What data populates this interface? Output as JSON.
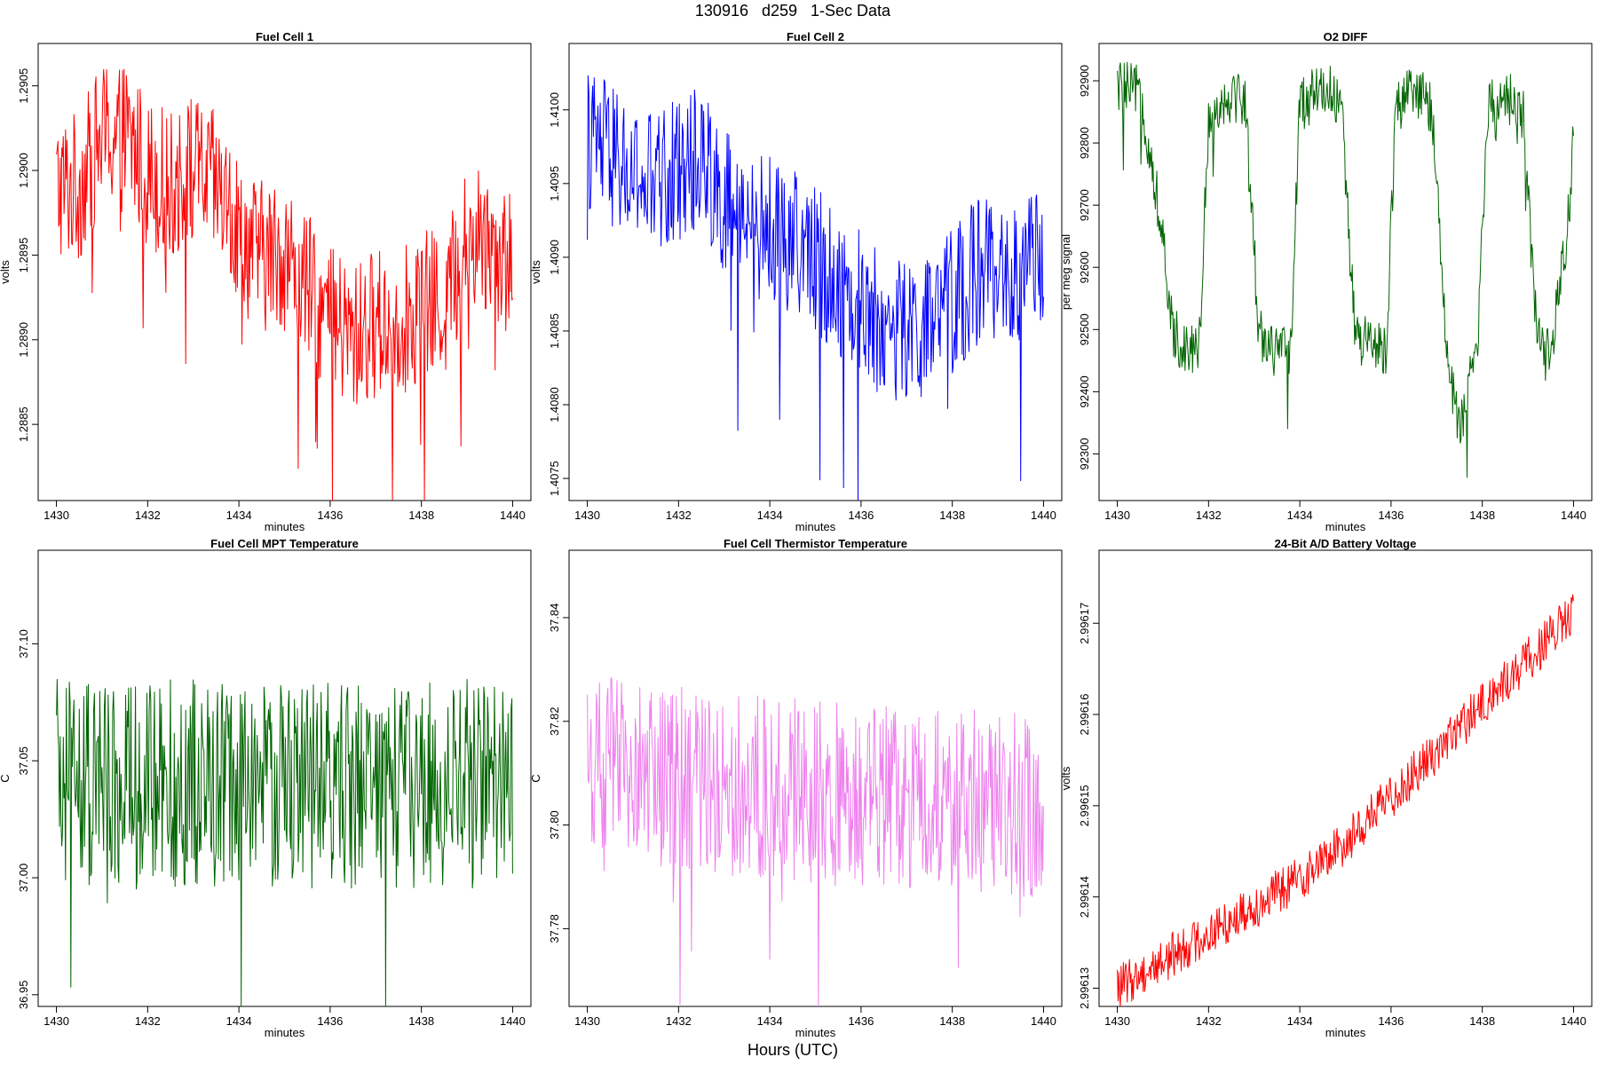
{
  "figure": {
    "title": "130916   d259   1-Sec Data",
    "xlabel": "Hours (UTC)"
  },
  "chart_data": [
    {
      "type": "line",
      "title": "Fuel Cell 1",
      "xlabel": "minutes",
      "ylabel": "volts",
      "xlim": [
        1429.6,
        1440.4
      ],
      "ylim": [
        1.28805,
        1.29075
      ],
      "xticks": [
        1430,
        1432,
        1434,
        1436,
        1438,
        1440
      ],
      "yticks": [
        "1.2885",
        "1.2890",
        "1.2895",
        "1.2900",
        "1.2905"
      ],
      "color": "#ff0000",
      "series": [
        {
          "x": [
            1430,
            1430.5,
            1431,
            1431.5,
            1432,
            1432.5,
            1433,
            1433.5,
            1434,
            1434.5,
            1435,
            1435.5,
            1436,
            1436.5,
            1437,
            1437.5,
            1438,
            1438.5,
            1439,
            1439.5,
            1440
          ],
          "y": [
            1.2899,
            1.2899,
            1.2902,
            1.2902,
            1.29,
            1.2899,
            1.29,
            1.2899,
            1.2896,
            1.2895,
            1.2895,
            1.2893,
            1.2891,
            1.289,
            1.2891,
            1.2891,
            1.2892,
            1.2892,
            1.2896,
            1.2896,
            1.2894
          ]
        }
      ]
    },
    {
      "type": "line",
      "title": "Fuel Cell 2",
      "xlabel": "minutes",
      "ylabel": "volts",
      "xlim": [
        1429.6,
        1440.4
      ],
      "ylim": [
        1.40735,
        1.41045
      ],
      "xticks": [
        1430,
        1432,
        1434,
        1436,
        1438,
        1440
      ],
      "yticks": [
        "1.4075",
        "1.4080",
        "1.4085",
        "1.4090",
        "1.4095",
        "1.4100"
      ],
      "color": "#0000ff",
      "series": [
        {
          "x": [
            1430,
            1430.5,
            1431,
            1431.5,
            1432,
            1432.5,
            1433,
            1433.5,
            1434,
            1434.5,
            1435,
            1435.5,
            1436,
            1436.5,
            1437,
            1437.5,
            1438,
            1438.5,
            1439,
            1439.5,
            1440
          ],
          "y": [
            1.4098,
            1.4097,
            1.4095,
            1.4095,
            1.4096,
            1.4097,
            1.4094,
            1.4092,
            1.4092,
            1.4091,
            1.409,
            1.4088,
            1.4087,
            1.4085,
            1.4085,
            1.4085,
            1.4087,
            1.4089,
            1.4089,
            1.4088,
            1.4091
          ]
        }
      ]
    },
    {
      "type": "line",
      "title": "O2 DIFF",
      "xlabel": "minutes",
      "ylabel": "per meg signal",
      "xlim": [
        1429.6,
        1440.4
      ],
      "ylim": [
        92225,
        92960
      ],
      "xticks": [
        1430,
        1432,
        1434,
        1436,
        1438,
        1440
      ],
      "yticks": [
        "92300",
        "92400",
        "92500",
        "92600",
        "92700",
        "92800",
        "92900"
      ],
      "color": "#006400",
      "series": [
        {
          "x": [
            1430,
            1430.5,
            1430.9,
            1431.2,
            1431.5,
            1431.8,
            1432,
            1432.5,
            1432.8,
            1433.1,
            1433.5,
            1433.8,
            1434,
            1434.5,
            1434.9,
            1435.2,
            1435.5,
            1435.9,
            1436.1,
            1436.5,
            1436.9,
            1437.2,
            1437.5,
            1437.9,
            1438.1,
            1438.5,
            1438.9,
            1439.2,
            1439.5,
            1439.9,
            1440
          ],
          "y": [
            92890,
            92880,
            92700,
            92500,
            92470,
            92480,
            92840,
            92880,
            92870,
            92500,
            92460,
            92470,
            92860,
            92890,
            92870,
            92500,
            92470,
            92470,
            92860,
            92880,
            92860,
            92480,
            92330,
            92480,
            92850,
            92880,
            92850,
            92480,
            92450,
            92690,
            92840
          ]
        }
      ]
    },
    {
      "type": "line",
      "title": "Fuel Cell MPT Temperature",
      "xlabel": "minutes",
      "ylabel": "C",
      "xlim": [
        1429.6,
        1440.4
      ],
      "ylim": [
        36.945,
        37.14
      ],
      "xticks": [
        1430,
        1432,
        1434,
        1436,
        1438,
        1440
      ],
      "yticks": [
        "36.95",
        "37.00",
        "37.05",
        "37.10"
      ],
      "color": "#006400",
      "series": [
        {
          "x": [
            1430,
            1431,
            1432,
            1433,
            1434,
            1435,
            1436,
            1437,
            1438,
            1439,
            1440
          ],
          "y": [
            37.04,
            37.04,
            37.04,
            37.04,
            37.04,
            37.04,
            37.04,
            37.04,
            37.04,
            37.04,
            37.04
          ]
        }
      ]
    },
    {
      "type": "line",
      "title": "Fuel Cell Thermistor Temperature",
      "xlabel": "minutes",
      "ylabel": "C",
      "xlim": [
        1429.6,
        1440.4
      ],
      "ylim": [
        37.765,
        37.853
      ],
      "xticks": [
        1430,
        1432,
        1434,
        1436,
        1438,
        1440
      ],
      "yticks": [
        "37.78",
        "37.80",
        "37.82",
        "37.84"
      ],
      "color": "#ee82ee",
      "series": [
        {
          "x": [
            1430,
            1431,
            1432,
            1433,
            1434,
            1435,
            1436,
            1437,
            1438,
            1439,
            1440
          ],
          "y": [
            37.812,
            37.81,
            37.809,
            37.808,
            37.807,
            37.806,
            37.806,
            37.805,
            37.805,
            37.804,
            37.804
          ]
        }
      ]
    },
    {
      "type": "line",
      "title": "24-Bit A/D Battery Voltage",
      "xlabel": "minutes",
      "ylabel": "volts",
      "xlim": [
        1429.6,
        1440.4
      ],
      "ylim": [
        2.996128,
        2.996178
      ],
      "xticks": [
        1430,
        1432,
        1434,
        1436,
        1438,
        1440
      ],
      "yticks": [
        "2.99613",
        "2.99614",
        "2.99615",
        "2.99616",
        "2.99617"
      ],
      "color": "#ff0000",
      "series": [
        {
          "x": [
            1430,
            1431,
            1432,
            1433,
            1434,
            1435,
            1436,
            1437,
            1438,
            1439,
            1440
          ],
          "y": [
            2.99613,
            2.996133,
            2.996136,
            2.996139,
            2.996142,
            2.996146,
            2.996151,
            2.996156,
            2.996161,
            2.996166,
            2.996171
          ]
        }
      ]
    }
  ]
}
